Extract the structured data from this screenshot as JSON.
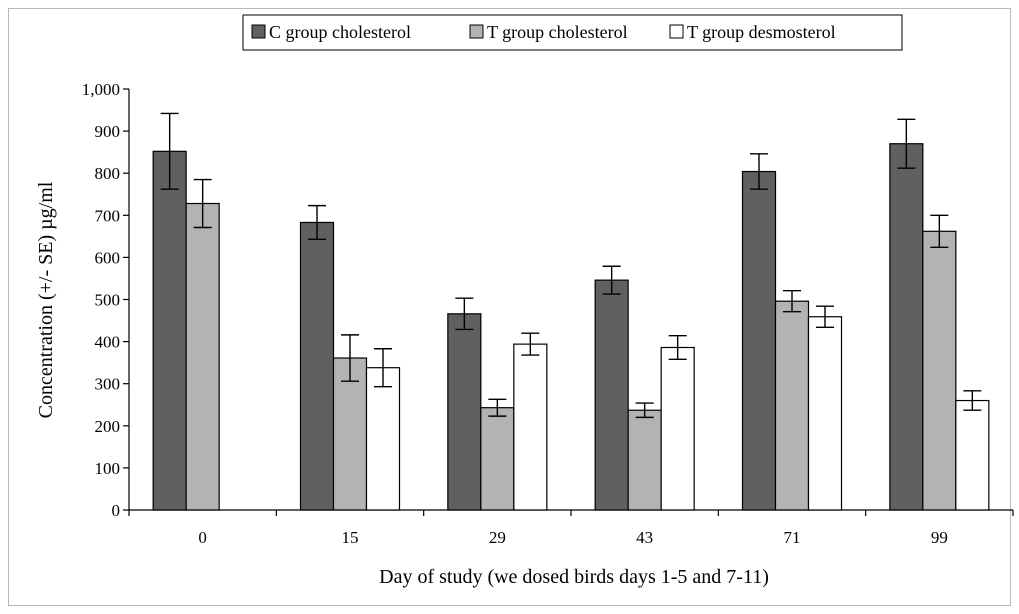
{
  "chart_data": {
    "type": "bar",
    "categories": [
      "0",
      "15",
      "29",
      "43",
      "71",
      "99"
    ],
    "series": [
      {
        "name": "C group cholesterol",
        "color": "#606060",
        "values": [
          852,
          683,
          466,
          546,
          804,
          870
        ],
        "errors": [
          90,
          40,
          37,
          33,
          42,
          58
        ]
      },
      {
        "name": "T group cholesterol",
        "color": "#b3b3b3",
        "values": [
          728,
          361,
          243,
          237,
          496,
          662
        ],
        "errors": [
          57,
          55,
          20,
          17,
          25,
          38
        ]
      },
      {
        "name": "T group desmosterol",
        "color": "#ffffff",
        "values": [
          null,
          338,
          394,
          386,
          459,
          260
        ],
        "errors": [
          null,
          45,
          26,
          28,
          25,
          23
        ]
      }
    ],
    "xlabel": "Day of study (we dosed birds days 1-5 and 7-11)",
    "ylabel": "Concentration (+/- SE) µg/ml",
    "ylim": [
      0,
      1000
    ],
    "yticks": [
      0,
      100,
      200,
      300,
      400,
      500,
      600,
      700,
      800,
      900,
      1000
    ],
    "ytick_labels": [
      "0",
      "100",
      "200",
      "300",
      "400",
      "500",
      "600",
      "700",
      "800",
      "900",
      "1,000"
    ],
    "grid": false,
    "legend_position": "top-center"
  }
}
